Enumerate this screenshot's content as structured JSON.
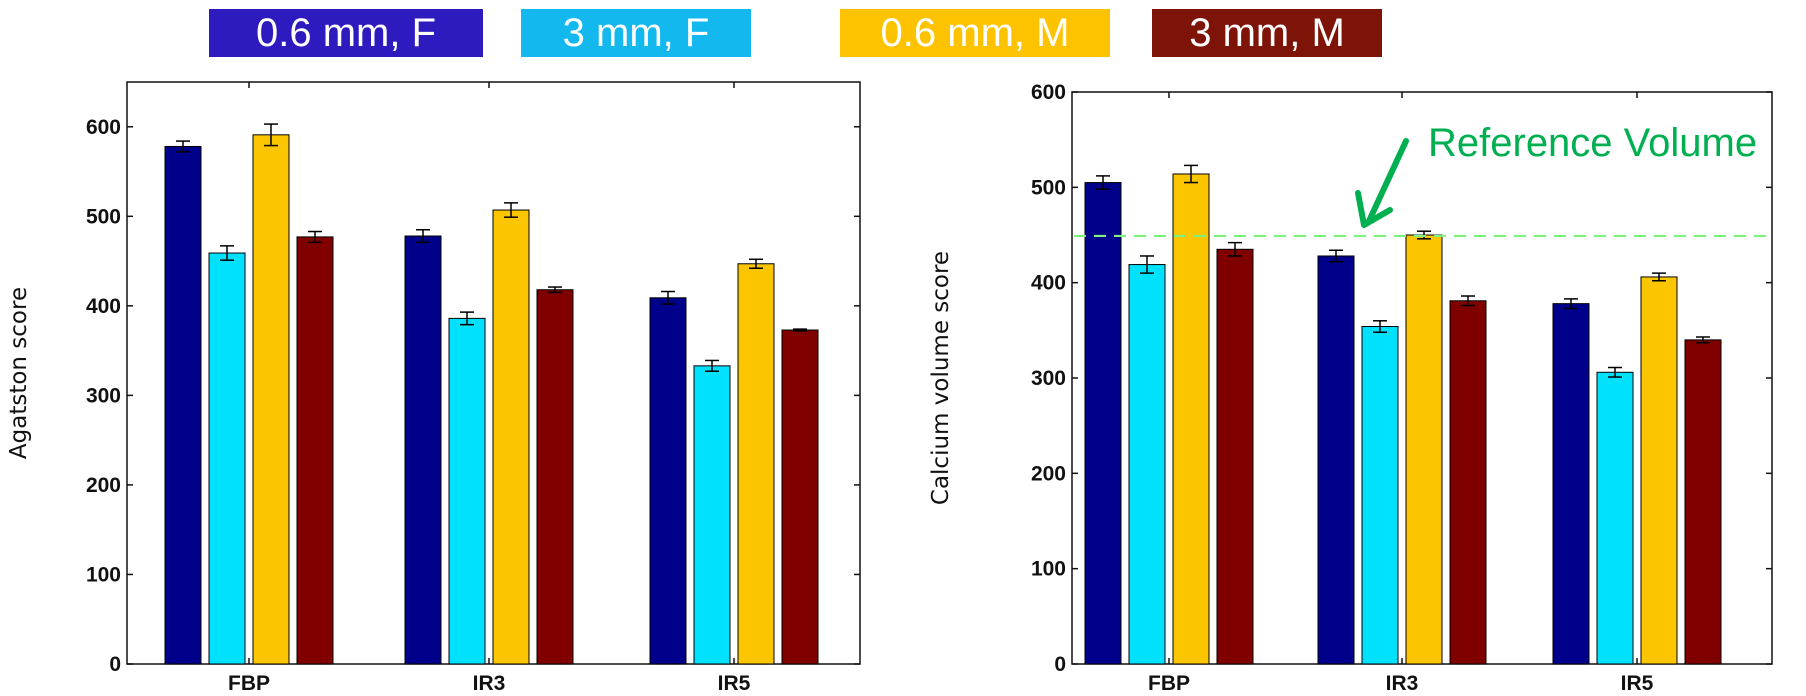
{
  "legend": [
    {
      "label": "0.6 mm, F",
      "color": "#2e1bc0"
    },
    {
      "label": "3 mm, F",
      "color": "#12b8ee"
    },
    {
      "label": "0.6 mm, M",
      "color": "#fdc300"
    },
    {
      "label": "3 mm, M",
      "color": "#7e1308"
    }
  ],
  "chart_data": [
    {
      "type": "bar",
      "categories": [
        "FBP",
        "IR3",
        "IR5"
      ],
      "ylabel": "Agatston score",
      "xlabel": "",
      "ylim": [
        0,
        650
      ],
      "yticks": [
        0,
        100,
        200,
        300,
        400,
        500,
        600
      ],
      "series": [
        {
          "name": "0.6 mm, F",
          "color": "#00008b",
          "values": [
            578,
            478,
            409
          ],
          "errors": [
            6,
            7,
            7
          ]
        },
        {
          "name": "3 mm, F",
          "color": "#00e1fd",
          "values": [
            459,
            386,
            333
          ],
          "errors": [
            8,
            7,
            6
          ]
        },
        {
          "name": "0.6 mm, M",
          "color": "#fbc500",
          "values": [
            591,
            507,
            447
          ],
          "errors": [
            12,
            8,
            5
          ]
        },
        {
          "name": "3 mm, M",
          "color": "#800000",
          "values": [
            477,
            418,
            373
          ],
          "errors": [
            6,
            3,
            1
          ]
        }
      ]
    },
    {
      "type": "bar",
      "categories": [
        "FBP",
        "IR3",
        "IR5"
      ],
      "ylabel": "Calcium volume score",
      "xlabel": "",
      "ylim": [
        0,
        600
      ],
      "yticks": [
        0,
        100,
        200,
        300,
        400,
        500,
        600
      ],
      "reference_line": {
        "value": 449,
        "label": "Reference Volume",
        "color": "#00b050"
      },
      "series": [
        {
          "name": "0.6 mm, F",
          "color": "#00008b",
          "values": [
            505,
            428,
            378
          ],
          "errors": [
            7,
            6,
            5
          ]
        },
        {
          "name": "3 mm, F",
          "color": "#00e1fd",
          "values": [
            419,
            354,
            306
          ],
          "errors": [
            9,
            6,
            5
          ]
        },
        {
          "name": "0.6 mm, M",
          "color": "#fbc500",
          "values": [
            514,
            450,
            406
          ],
          "errors": [
            9,
            4,
            4
          ]
        },
        {
          "name": "3 mm, M",
          "color": "#800000",
          "values": [
            435,
            381,
            340
          ],
          "errors": [
            7,
            5,
            3
          ]
        }
      ]
    }
  ]
}
